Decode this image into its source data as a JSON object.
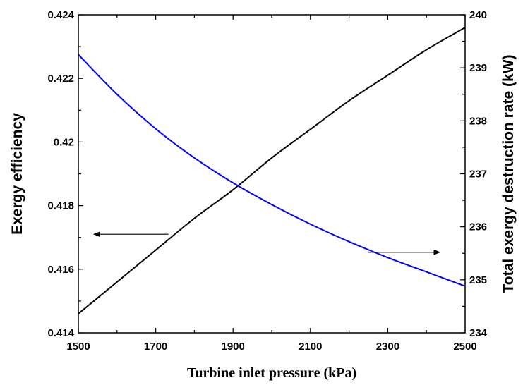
{
  "chart_data": {
    "type": "line",
    "title": "",
    "xlabel": "Turbine inlet pressure (kPa)",
    "ylabel_left": "Exergy efficiency",
    "ylabel_right": "Total exergy destruction rate (kW)",
    "xlim": [
      1500,
      2500
    ],
    "ylim_left": [
      0.414,
      0.424
    ],
    "ylim_right": [
      234,
      240
    ],
    "x_ticks": [
      1500,
      1700,
      1900,
      2100,
      2300,
      2500
    ],
    "x_tick_labels": [
      "1500",
      "1700",
      "1900",
      "2100",
      "2300",
      "2500"
    ],
    "y_left_ticks": [
      0.414,
      0.416,
      0.418,
      0.42,
      0.422,
      0.424
    ],
    "y_left_tick_labels": [
      "0.414",
      "0.416",
      "0.418",
      "0.42",
      "0.422",
      "0.424"
    ],
    "y_right_ticks": [
      234,
      235,
      236,
      237,
      238,
      239,
      240
    ],
    "y_right_tick_labels": [
      "234",
      "235",
      "236",
      "237",
      "238",
      "239",
      "240"
    ],
    "grid": false,
    "legend": "none",
    "series": [
      {
        "axis": "left",
        "color": "#000000",
        "x": [
          1500,
          1600,
          1700,
          1800,
          1900,
          2000,
          2100,
          2200,
          2300,
          2400,
          2500
        ],
        "y": [
          0.4146,
          0.4156,
          0.4166,
          0.4176,
          0.4185,
          0.4195,
          0.4204,
          0.4213,
          0.4221,
          0.4229,
          0.4236
        ]
      },
      {
        "axis": "right",
        "color": "#0000ff",
        "x": [
          1500,
          1600,
          1700,
          1800,
          1900,
          2000,
          2100,
          2200,
          2300,
          2400,
          2500
        ],
        "y": [
          239.25,
          238.5,
          237.85,
          237.3,
          236.83,
          236.42,
          236.05,
          235.72,
          235.42,
          235.15,
          234.88
        ]
      }
    ],
    "annotations": [
      {
        "type": "arrow",
        "direction": "left",
        "points_to": "Exergy efficiency axis"
      },
      {
        "type": "arrow",
        "direction": "right",
        "points_to": "Total exergy destruction rate axis"
      }
    ]
  }
}
